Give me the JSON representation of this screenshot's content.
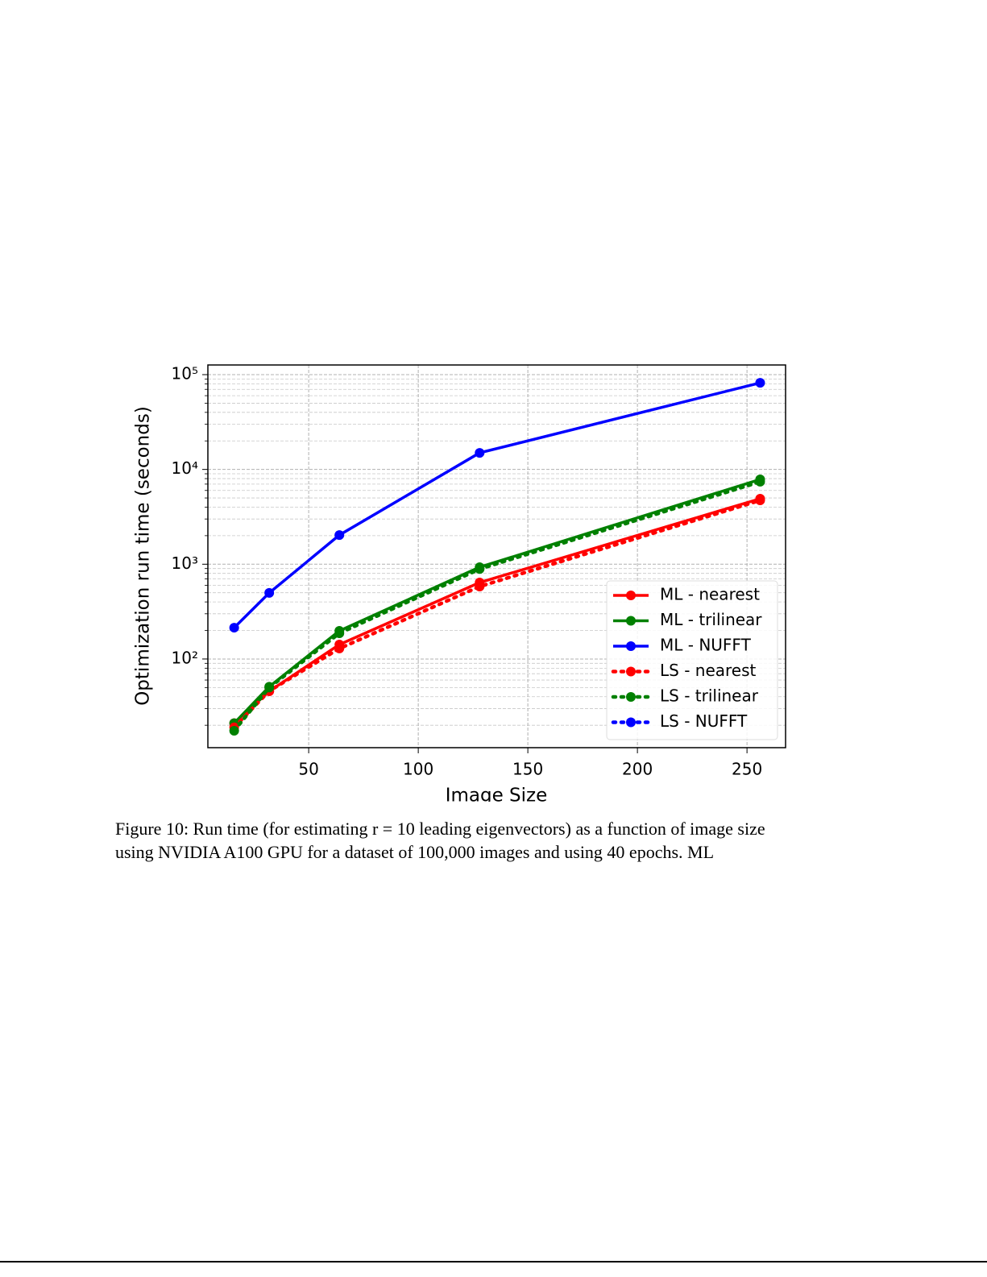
{
  "chart_data": {
    "type": "line",
    "xlabel": "Image Size",
    "ylabel": "Optimization run time (seconds)",
    "x": [
      16,
      32,
      64,
      128,
      256
    ],
    "series": [
      {
        "name": "ML - nearest",
        "color": "#ff0000",
        "linestyle": "solid",
        "values": [
          21,
          45.7,
          142,
          641,
          4910
        ]
      },
      {
        "name": "ML - trilinear",
        "color": "#008000",
        "linestyle": "solid",
        "values": [
          21,
          51,
          198,
          931,
          7850
        ]
      },
      {
        "name": "ML - NUFFT",
        "color": "#0000ff",
        "linestyle": "solid",
        "values": [
          214,
          498,
          2030,
          14960,
          82000
        ]
      },
      {
        "name": "LS - nearest",
        "color": "#ff0000",
        "linestyle": "dotted",
        "values": [
          19,
          46,
          129,
          582,
          4720
        ]
      },
      {
        "name": "LS - trilinear",
        "color": "#008000",
        "linestyle": "dotted",
        "values": [
          17.5,
          50,
          187,
          890,
          7420
        ]
      },
      {
        "name": "LS - NUFFT",
        "color": "#0000ff",
        "linestyle": "dotted",
        "values": [
          null,
          null,
          null,
          null,
          null
        ]
      }
    ],
    "xlim": [
      4,
      267.6
    ],
    "xticks": [
      50,
      100,
      150,
      200,
      250
    ],
    "ylim": [
      11.6,
      126500
    ],
    "ylog": true,
    "yticks": [
      {
        "value": 100,
        "label": "10²"
      },
      {
        "value": 1000,
        "label": "10³"
      },
      {
        "value": 10000,
        "label": "10⁴"
      },
      {
        "value": 100000,
        "label": "10⁵"
      }
    ],
    "yminorticks": [
      20,
      30,
      40,
      50,
      60,
      70,
      80,
      90,
      200,
      300,
      400,
      500,
      600,
      700,
      800,
      900,
      2000,
      3000,
      4000,
      5000,
      6000,
      7000,
      8000,
      9000,
      20000,
      30000,
      40000,
      50000,
      60000,
      70000,
      80000,
      90000
    ],
    "grid": true,
    "legend": "lower right"
  },
  "caption": [
    "Figure 10: Run time (for estimating r = 10 leading eigenvectors) as a function of image size",
    "using NVIDIA A100 GPU for a dataset of 100,000 images and using 40 epochs. ML"
  ]
}
